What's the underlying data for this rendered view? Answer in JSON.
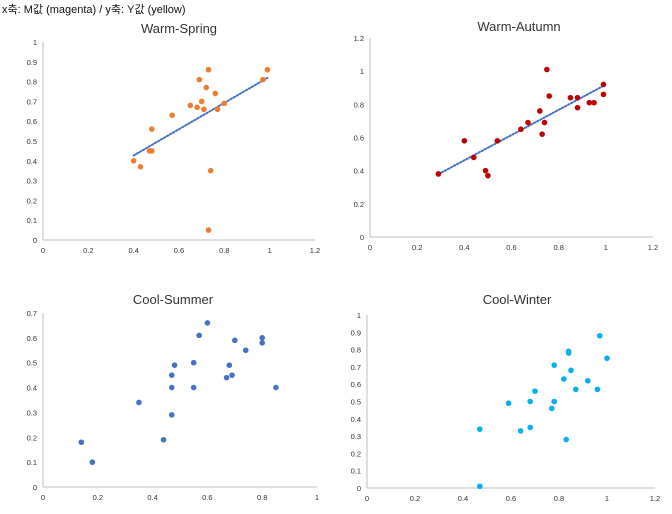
{
  "caption": "x축: M값 (magenta) / y축: Y값 (yellow)",
  "chart_data": [
    {
      "type": "scatter",
      "title": "Warm-Spring",
      "color": "#ed7d31",
      "trendline": true,
      "trendline_color": "#4472c4",
      "xlim": [
        0,
        1.2
      ],
      "ylim": [
        0,
        1
      ],
      "xticks": [
        "0",
        "0.2",
        "0.4",
        "0.6",
        "0.8",
        "1",
        "1.2"
      ],
      "yticks": [
        "0",
        "0.1",
        "0.2",
        "0.3",
        "0.4",
        "0.5",
        "0.6",
        "0.7",
        "0.8",
        "0.9",
        "1"
      ],
      "points": [
        [
          0.4,
          0.4
        ],
        [
          0.43,
          0.37
        ],
        [
          0.47,
          0.45
        ],
        [
          0.48,
          0.56
        ],
        [
          0.48,
          0.45
        ],
        [
          0.57,
          0.63
        ],
        [
          0.65,
          0.68
        ],
        [
          0.68,
          0.67
        ],
        [
          0.69,
          0.81
        ],
        [
          0.7,
          0.7
        ],
        [
          0.72,
          0.77
        ],
        [
          0.71,
          0.66
        ],
        [
          0.73,
          0.86
        ],
        [
          0.76,
          0.74
        ],
        [
          0.77,
          0.66
        ],
        [
          0.8,
          0.69
        ],
        [
          0.74,
          0.35
        ],
        [
          0.73,
          0.05
        ],
        [
          0.97,
          0.81
        ],
        [
          0.99,
          0.86
        ]
      ]
    },
    {
      "type": "scatter",
      "title": "Warm-Autumn",
      "color": "#c00000",
      "trendline": true,
      "trendline_color": "#4472c4",
      "xlim": [
        0,
        1.2
      ],
      "ylim": [
        0,
        1.2
      ],
      "xticks": [
        "0",
        "0.2",
        "0.4",
        "0.6",
        "0.8",
        "1",
        "1.2"
      ],
      "yticks": [
        "0",
        "0.2",
        "0.4",
        "0.6",
        "0.8",
        "1",
        "1.2"
      ],
      "points": [
        [
          0.29,
          0.38
        ],
        [
          0.4,
          0.58
        ],
        [
          0.44,
          0.48
        ],
        [
          0.49,
          0.4
        ],
        [
          0.5,
          0.37
        ],
        [
          0.54,
          0.58
        ],
        [
          0.64,
          0.65
        ],
        [
          0.67,
          0.69
        ],
        [
          0.72,
          0.76
        ],
        [
          0.73,
          0.62
        ],
        [
          0.74,
          0.69
        ],
        [
          0.75,
          1.01
        ],
        [
          0.76,
          0.85
        ],
        [
          0.85,
          0.84
        ],
        [
          0.88,
          0.78
        ],
        [
          0.88,
          0.84
        ],
        [
          0.93,
          0.81
        ],
        [
          0.95,
          0.81
        ],
        [
          0.99,
          0.86
        ],
        [
          0.99,
          0.92
        ]
      ]
    },
    {
      "type": "scatter",
      "title": "Cool-Summer",
      "color": "#4472c4",
      "trendline": false,
      "xlim": [
        0,
        1
      ],
      "ylim": [
        0,
        0.7
      ],
      "xticks": [
        "0",
        "0.2",
        "0.4",
        "0.6",
        "0.8",
        "1"
      ],
      "yticks": [
        "0",
        "0.1",
        "0.2",
        "0.3",
        "0.4",
        "0.5",
        "0.6",
        "0.7"
      ],
      "points": [
        [
          0.14,
          0.18
        ],
        [
          0.18,
          0.1
        ],
        [
          0.35,
          0.34
        ],
        [
          0.44,
          0.19
        ],
        [
          0.47,
          0.29
        ],
        [
          0.47,
          0.4
        ],
        [
          0.47,
          0.45
        ],
        [
          0.48,
          0.49
        ],
        [
          0.55,
          0.4
        ],
        [
          0.55,
          0.5
        ],
        [
          0.57,
          0.61
        ],
        [
          0.6,
          0.66
        ],
        [
          0.67,
          0.44
        ],
        [
          0.68,
          0.49
        ],
        [
          0.69,
          0.45
        ],
        [
          0.7,
          0.59
        ],
        [
          0.74,
          0.55
        ],
        [
          0.8,
          0.58
        ],
        [
          0.8,
          0.6
        ],
        [
          0.85,
          0.4
        ]
      ]
    },
    {
      "type": "scatter",
      "title": "Cool-Winter",
      "color": "#00b0f0",
      "trendline": false,
      "xlim": [
        0,
        1.2
      ],
      "ylim": [
        0,
        1
      ],
      "xticks": [
        "0",
        "0.2",
        "0.4",
        "0.6",
        "0.8",
        "1",
        "1.2"
      ],
      "yticks": [
        "0",
        "0.1",
        "0.2",
        "0.3",
        "0.4",
        "0.5",
        "0.6",
        "0.7",
        "0.8",
        "0.9",
        "1"
      ],
      "points": [
        [
          0.47,
          0.01
        ],
        [
          0.47,
          0.34
        ],
        [
          0.59,
          0.49
        ],
        [
          0.64,
          0.33
        ],
        [
          0.68,
          0.35
        ],
        [
          0.68,
          0.5
        ],
        [
          0.7,
          0.56
        ],
        [
          0.77,
          0.46
        ],
        [
          0.78,
          0.5
        ],
        [
          0.78,
          0.71
        ],
        [
          0.82,
          0.63
        ],
        [
          0.83,
          0.28
        ],
        [
          0.84,
          0.78
        ],
        [
          0.84,
          0.79
        ],
        [
          0.85,
          0.68
        ],
        [
          0.87,
          0.57
        ],
        [
          0.92,
          0.62
        ],
        [
          0.96,
          0.57
        ],
        [
          0.97,
          0.88
        ],
        [
          1.0,
          0.75
        ]
      ]
    }
  ]
}
